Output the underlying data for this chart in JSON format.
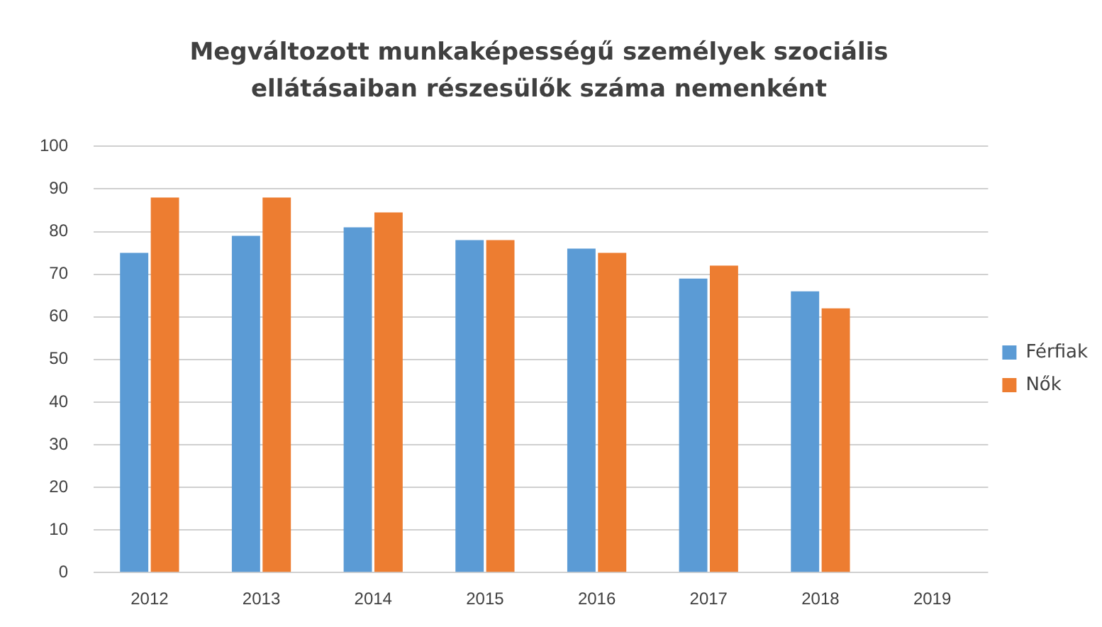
{
  "chart_data": {
    "type": "bar",
    "title": "Megváltozott munkaképességű személyek szociális ellátásaiban részesülők száma nemenként",
    "categories": [
      "2012",
      "2013",
      "2014",
      "2015",
      "2016",
      "2017",
      "2018",
      "2019"
    ],
    "series": [
      {
        "name": "Férfiak",
        "color": "#5b9bd5",
        "values": [
          75,
          79,
          81,
          78,
          76,
          69,
          66,
          null
        ]
      },
      {
        "name": "Nők",
        "color": "#ed7d31",
        "values": [
          88,
          88,
          84.5,
          78,
          75,
          72,
          62,
          null
        ]
      }
    ],
    "ylim": [
      0,
      100
    ],
    "yticks": [
      0,
      10,
      20,
      30,
      40,
      50,
      60,
      70,
      80,
      90,
      100
    ],
    "grid": "y",
    "legend": "right"
  }
}
